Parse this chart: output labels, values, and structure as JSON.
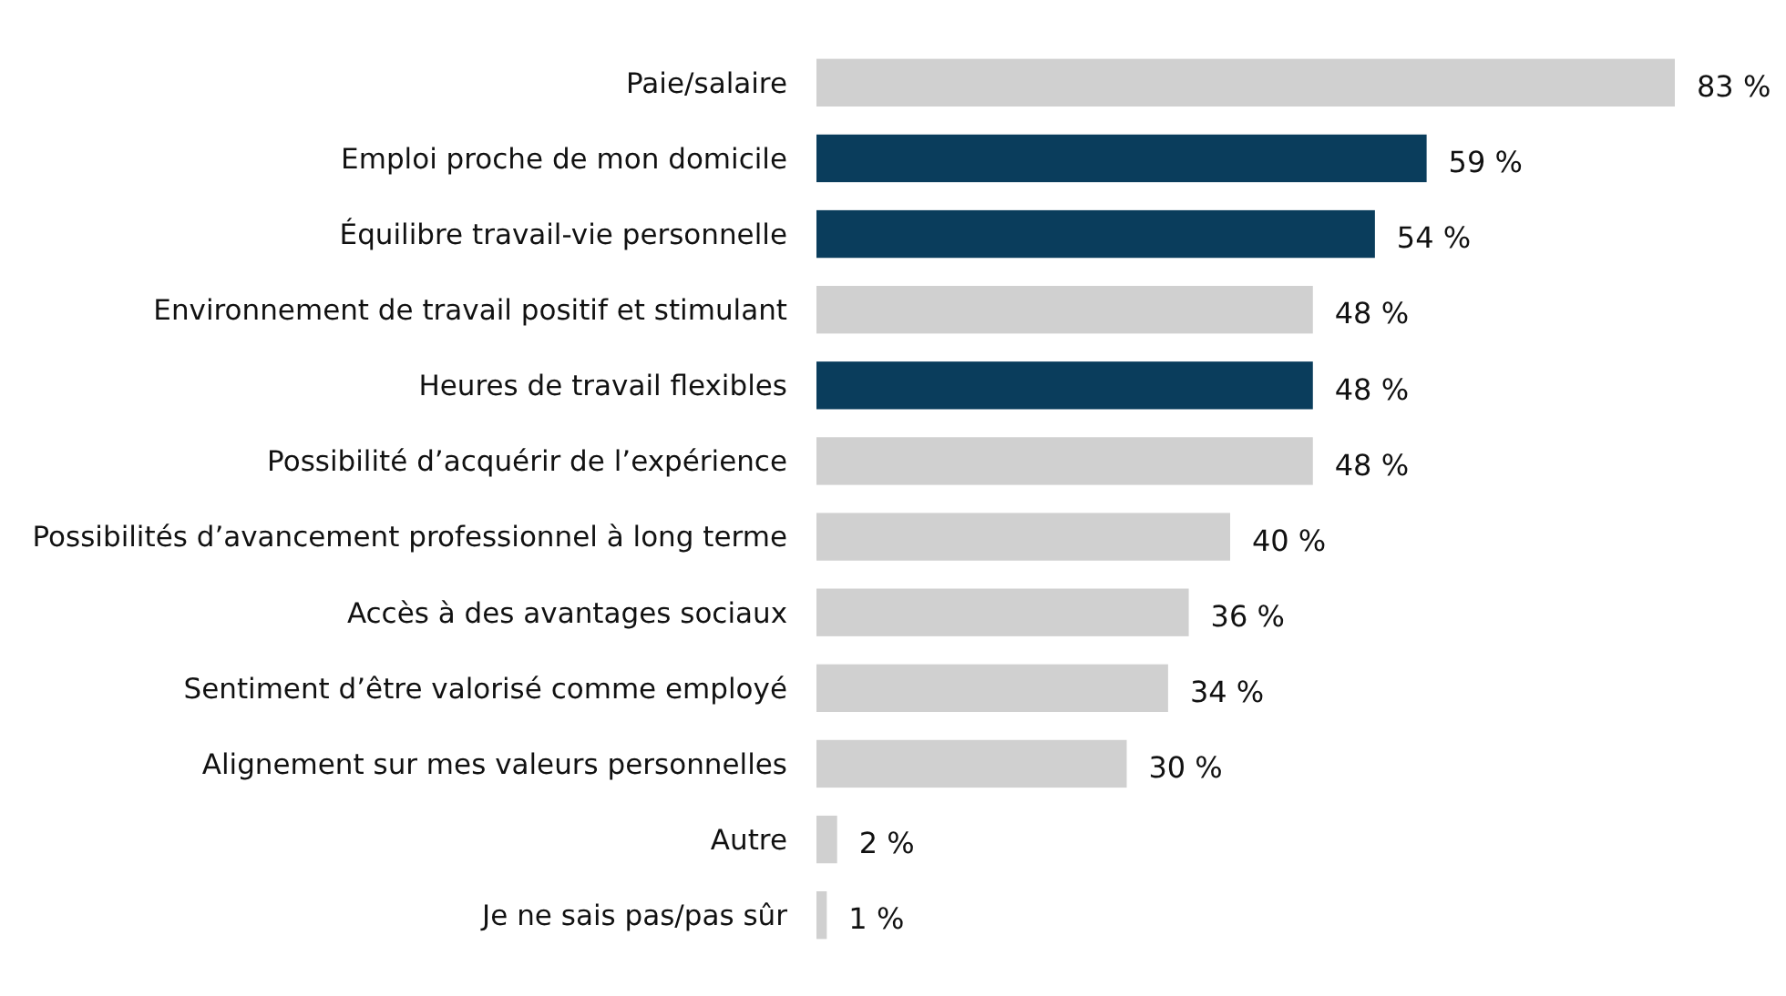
{
  "chart_data": {
    "type": "bar",
    "orientation": "horizontal",
    "categories": [
      "Paie/salaire",
      "Emploi proche de mon domicile",
      "Équilibre travail-vie personnelle",
      "Environnement de travail positif et stimulant",
      "Heures de travail flexibles",
      "Possibilité d’acquérir de l’expérience",
      "Possibilités d’avancement professionnel à long terme",
      "Accès à des avantages sociaux",
      "Sentiment d’être valorisé comme employé",
      "Alignement sur mes valeurs personnelles",
      "Autre",
      "Je ne sais pas/pas sûr"
    ],
    "values": [
      83,
      59,
      54,
      48,
      48,
      48,
      40,
      36,
      34,
      30,
      2,
      1
    ],
    "colors": [
      "#d0d0d0",
      "#0a3d5c",
      "#0a3d5c",
      "#d0d0d0",
      "#0a3d5c",
      "#d0d0d0",
      "#d0d0d0",
      "#d0d0d0",
      "#d0d0d0",
      "#d0d0d0",
      "#d0d0d0",
      "#d0d0d0"
    ],
    "value_labels": [
      "83 %",
      "59 %",
      "54 %",
      "48 %",
      "48 %",
      "48 %",
      "40 %",
      "36 %",
      "34 %",
      "30 %",
      "2 %",
      "1 %"
    ]
  }
}
